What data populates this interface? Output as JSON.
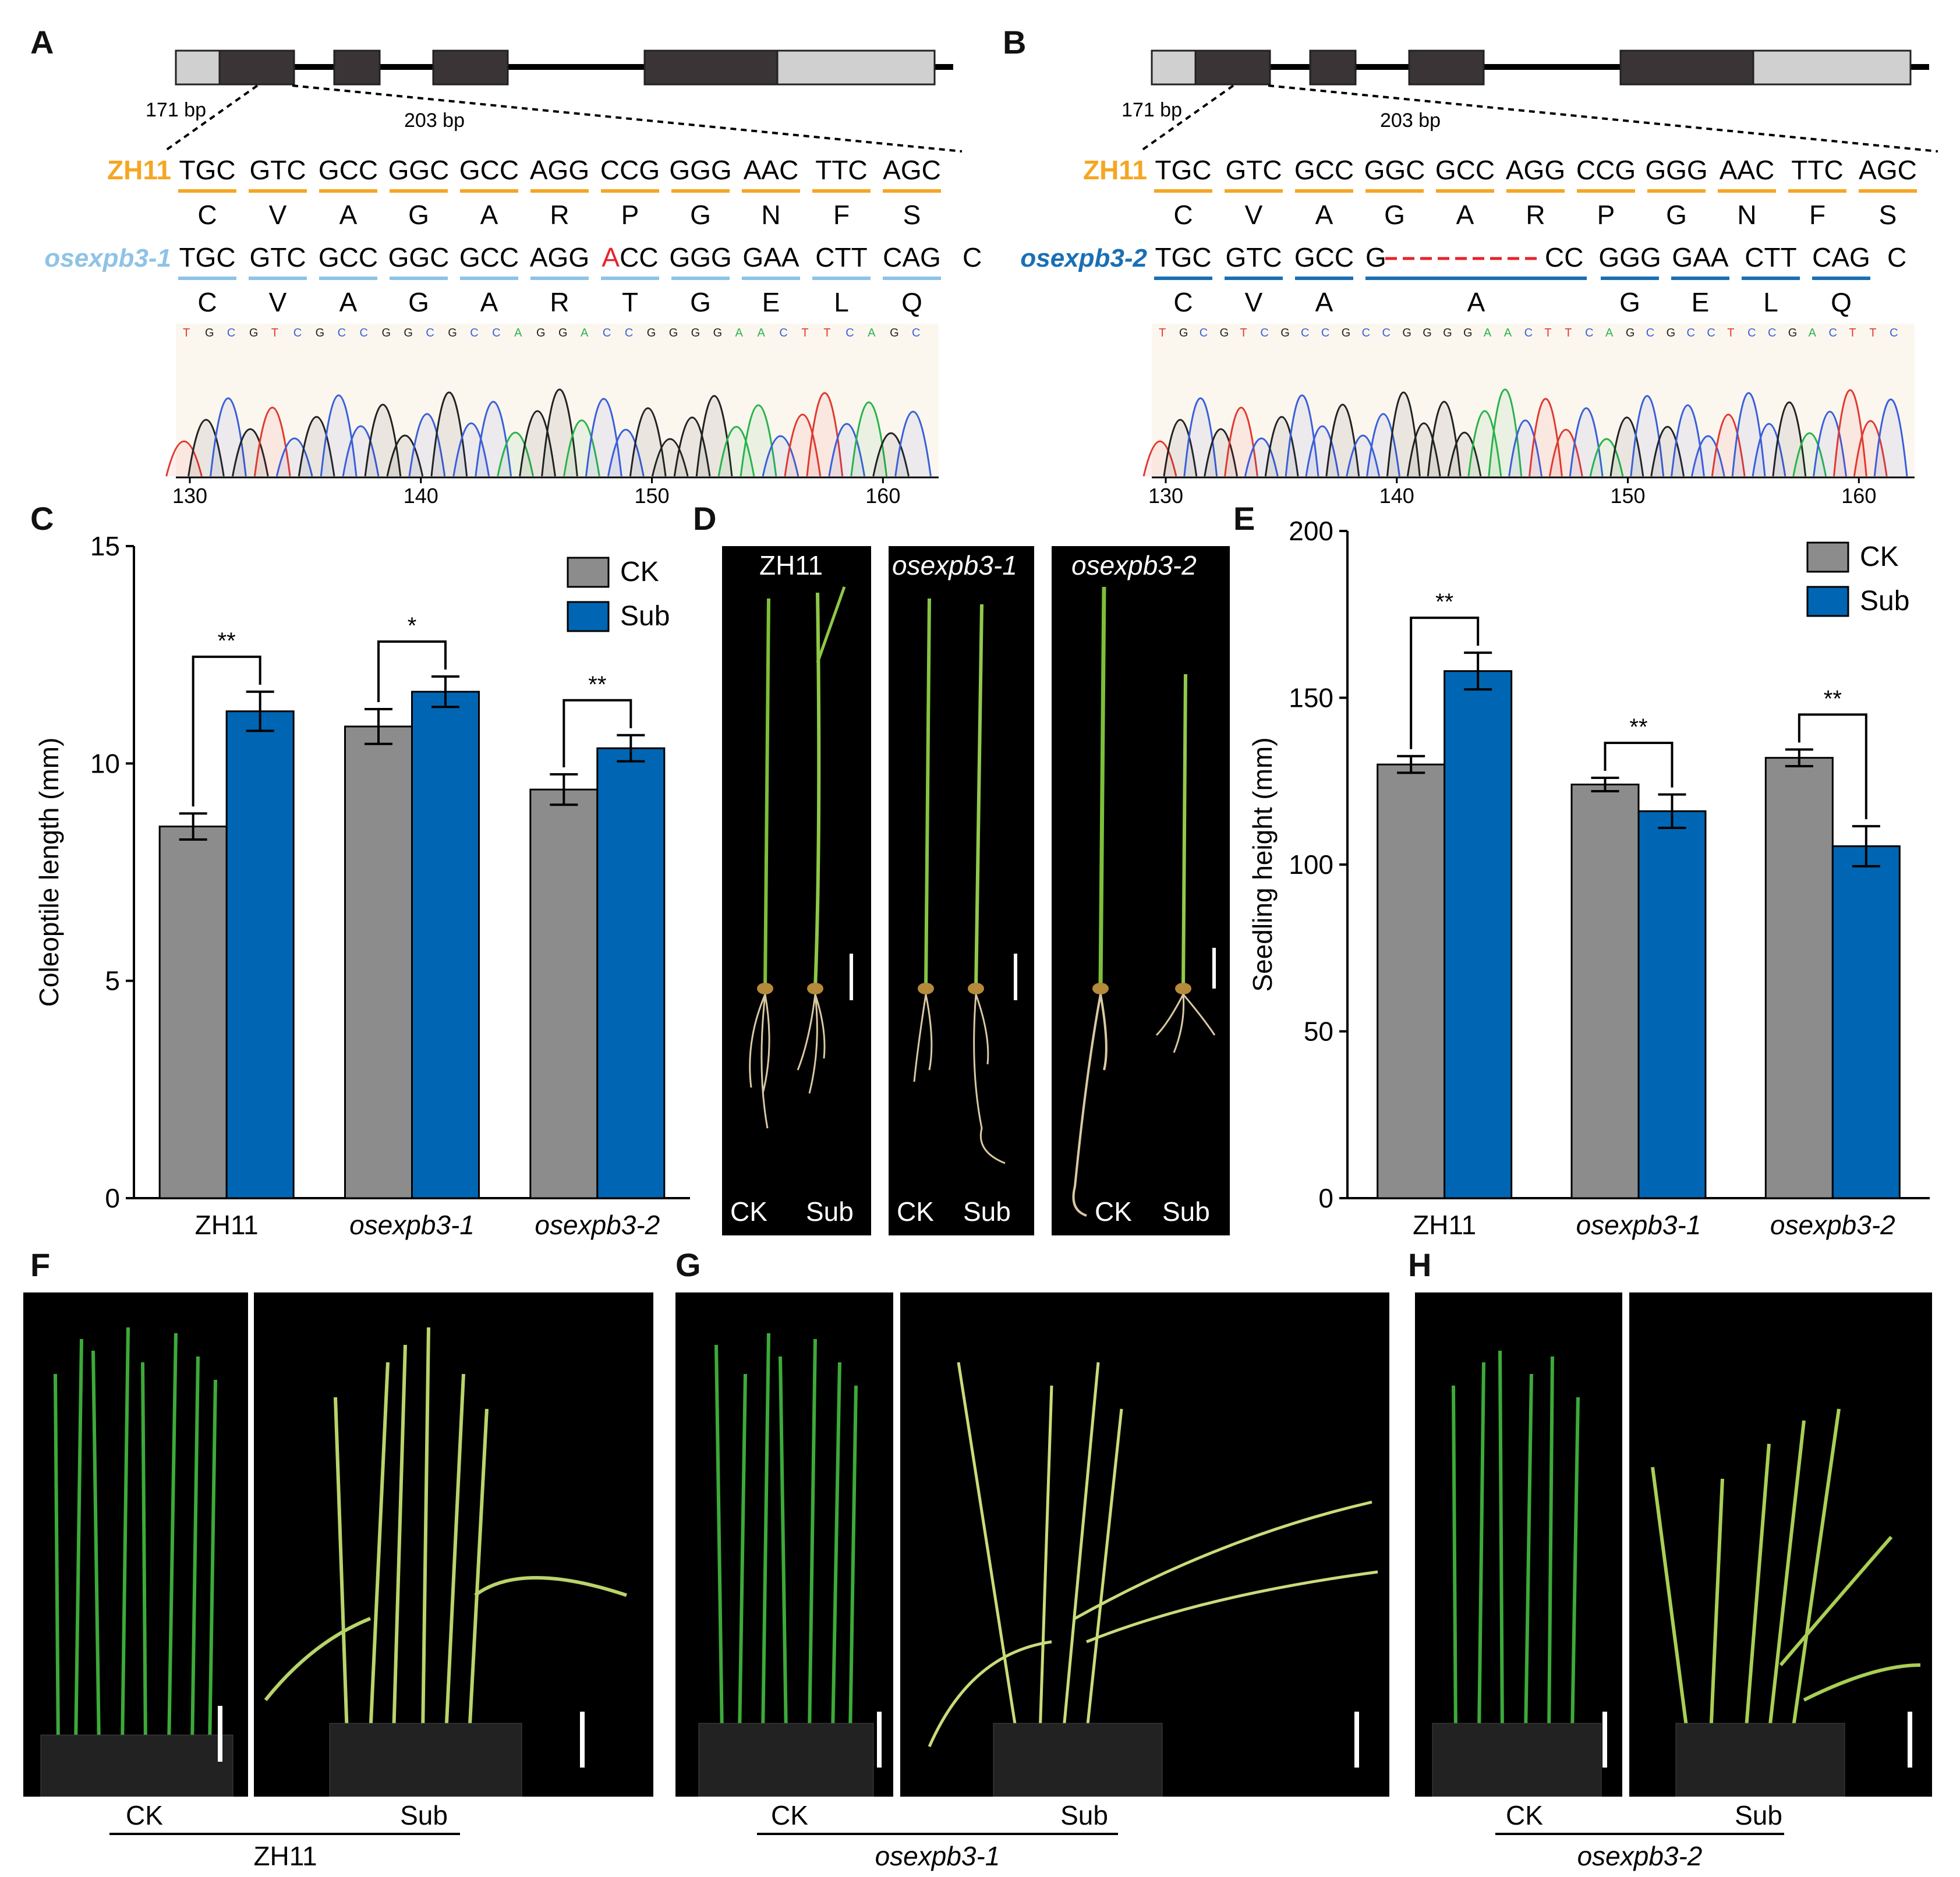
{
  "panel_letters": {
    "A": "A",
    "B": "B",
    "C": "C",
    "D": "D",
    "E": "E",
    "F": "F",
    "G": "G",
    "H": "H"
  },
  "gene": {
    "bp_left": "171 bp",
    "bp_right": "203 bp"
  },
  "panel_A": {
    "wt_name": "ZH11",
    "wt_codons": [
      "TGC",
      "GTC",
      "GCC",
      "GGC",
      "GCC",
      "AGG",
      "CCG",
      "GGG",
      "AAC",
      "TTC",
      "AGC"
    ],
    "wt_aa": [
      "C",
      "V",
      "A",
      "G",
      "A",
      "R",
      "P",
      "G",
      "N",
      "F",
      "S"
    ],
    "mut_name": "osexpb3-1",
    "mut_codons": [
      "TGC",
      "GTC",
      "GCC",
      "GGC",
      "GCC",
      "AGG",
      "ACC",
      "GGG",
      "GAA",
      "CTT",
      "CAG"
    ],
    "mut_tail": "C",
    "mut_aa": [
      "C",
      "V",
      "A",
      "G",
      "A",
      "R",
      "T",
      "G",
      "E",
      "L",
      "Q"
    ],
    "trace_seq": "TGCGTCGCCGGCGCCAGGACCGGGGAACTTCAGC",
    "axis_ticks": [
      "130",
      "140",
      "150",
      "160"
    ],
    "colors": {
      "wt": "#F5A623",
      "mut": "#8EC3E6",
      "insert": "#E8232B"
    }
  },
  "panel_B": {
    "wt_name": "ZH11",
    "wt_codons": [
      "TGC",
      "GTC",
      "GCC",
      "GGC",
      "GCC",
      "AGG",
      "CCG",
      "GGG",
      "AAC",
      "TTC",
      "AGC"
    ],
    "wt_aa": [
      "C",
      "V",
      "A",
      "G",
      "A",
      "R",
      "P",
      "G",
      "N",
      "F",
      "S"
    ],
    "mut_name": "osexpb3-2",
    "mut_prefix": [
      "TGC",
      "GTC",
      "GCC"
    ],
    "mut_del_start": "G",
    "mut_del_end": "CC",
    "mut_suffix": [
      "GGG",
      "GAA",
      "CTT",
      "CAG"
    ],
    "mut_tail": "C",
    "mut_aa": [
      "C",
      "V",
      "A",
      "A",
      "G",
      "E",
      "L",
      "Q"
    ],
    "trace_seq": "TGCGTCGCCGCCGGGGAACTTCAGCGCCTCCGACTTC",
    "axis_ticks": [
      "130",
      "140",
      "150",
      "160"
    ],
    "colors": {
      "wt": "#F5A623",
      "mut": "#1A6FB5",
      "deletion": "#E8232B"
    }
  },
  "chart_data": [
    {
      "panel": "C",
      "type": "bar",
      "ylabel": "Coleoptile length (mm)",
      "ylim": [
        0,
        15
      ],
      "yticks": [
        "0",
        "5",
        "10",
        "15"
      ],
      "categories": [
        "ZH11",
        "osexpb3-1",
        "osexpb3-2"
      ],
      "series": [
        {
          "name": "CK",
          "color": "#8C8C8C",
          "values": [
            8.55,
            10.85,
            9.4
          ],
          "errors": [
            0.3,
            0.4,
            0.35
          ]
        },
        {
          "name": "Sub",
          "color": "#0066B3",
          "values": [
            11.2,
            11.65,
            10.35
          ],
          "errors": [
            0.45,
            0.35,
            0.3
          ]
        }
      ],
      "significance": [
        "**",
        "*",
        "**"
      ],
      "legend": "top-right"
    },
    {
      "panel": "E",
      "type": "bar",
      "ylabel": "Seedling height (mm)",
      "ylim": [
        0,
        200
      ],
      "yticks": [
        "0",
        "50",
        "100",
        "150",
        "200"
      ],
      "categories": [
        "ZH11",
        "osexpb3-1",
        "osexpb3-2"
      ],
      "series": [
        {
          "name": "CK",
          "color": "#8C8C8C",
          "values": [
            130,
            124,
            132
          ],
          "errors": [
            2.5,
            2,
            2.5
          ]
        },
        {
          "name": "Sub",
          "color": "#0066B3",
          "values": [
            158,
            116,
            105.5
          ],
          "errors": [
            5.5,
            5,
            6
          ]
        }
      ],
      "significance": [
        "**",
        "**",
        "**"
      ],
      "legend": "top-right"
    }
  ],
  "panel_D": {
    "titles": [
      "ZH11",
      "osexpb3-1",
      "osexpb3-2"
    ],
    "left_label": "CK",
    "right_label": "Sub"
  },
  "photos": {
    "F": {
      "left": "CK",
      "right": "Sub",
      "genotype": "ZH11"
    },
    "G": {
      "left": "CK",
      "right": "Sub",
      "genotype": "osexpb3-1"
    },
    "H": {
      "left": "CK",
      "right": "Sub",
      "genotype": "osexpb3-2"
    }
  }
}
